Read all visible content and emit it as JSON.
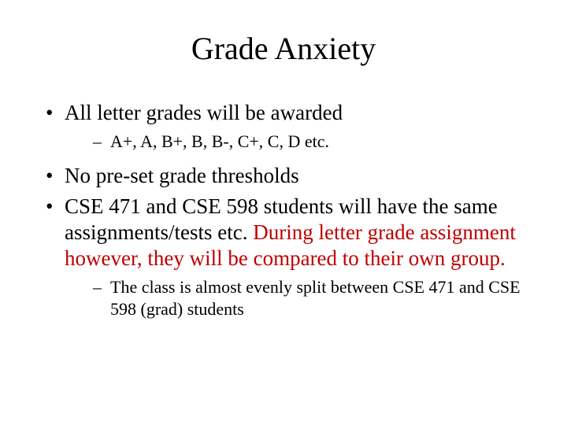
{
  "colors": {
    "highlight": "#c00000",
    "text": "#000000",
    "background": "#ffffff"
  },
  "title": "Grade Anxiety",
  "bullets": {
    "b1": "All letter grades will be awarded",
    "b1_sub1": "A+, A, B+, B, B-, C+, C, D etc.",
    "b2": "No pre-set grade thresholds",
    "b3_part1": "CSE 471 and CSE 598 students will have the same assignments/tests etc. ",
    "b3_highlight": "During letter grade assignment however, they will be compared to their own group.",
    "b3_sub1": "The class is almost evenly split between CSE 471 and CSE 598 (grad) students"
  }
}
